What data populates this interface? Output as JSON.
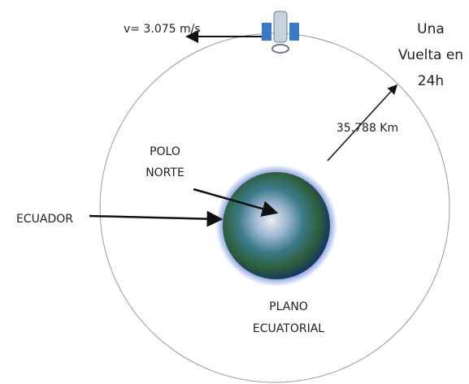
{
  "labels": {
    "velocity": "v= 3.075 m/s",
    "period": [
      "Una",
      "Vuelta en",
      "24h"
    ],
    "altitude": "35.788 Km",
    "pole": [
      "POLO",
      "NORTE"
    ],
    "equator": "ECUADOR",
    "plane": [
      "PLANO",
      "ECUATORIAL"
    ]
  }
}
